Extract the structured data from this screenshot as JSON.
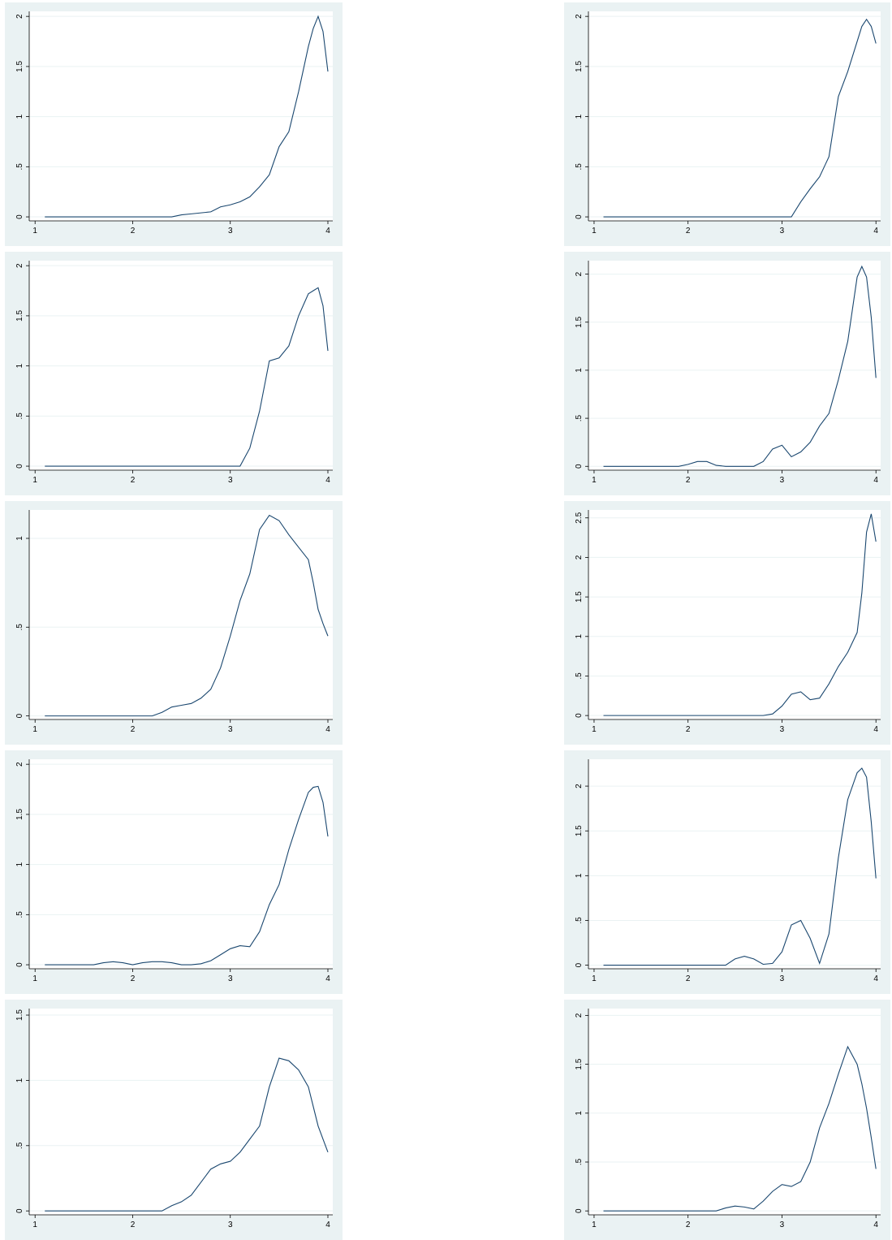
{
  "chart_data": [
    {
      "type": "line",
      "x": [
        1.1,
        1.2,
        1.3,
        1.4,
        1.5,
        1.6,
        1.7,
        1.8,
        1.9,
        2.0,
        2.1,
        2.2,
        2.3,
        2.4,
        2.5,
        2.6,
        2.7,
        2.8,
        2.9,
        3.0,
        3.1,
        3.2,
        3.3,
        3.4,
        3.5,
        3.6,
        3.7,
        3.8,
        3.85,
        3.9,
        3.95,
        4.0
      ],
      "series": [
        {
          "color": "#1a476f",
          "values": [
            0,
            0,
            0,
            0,
            0,
            0,
            0,
            0,
            0,
            0,
            0,
            0,
            0,
            0,
            0.02,
            0.03,
            0.04,
            0.05,
            0.1,
            0.12,
            0.15,
            0.2,
            0.3,
            0.42,
            0.7,
            0.85,
            1.25,
            1.7,
            1.88,
            2.0,
            1.85,
            1.45
          ]
        }
      ],
      "xlim": [
        0.94,
        4.05
      ],
      "xticks": [
        1,
        2,
        3,
        4
      ],
      "ylim": [
        -0.04,
        2.05
      ],
      "yticks": [
        0,
        {
          "value": 0.5,
          "label": ".5"
        },
        1,
        1.5,
        2
      ],
      "grid": true
    },
    {
      "type": "line",
      "x": [
        1.1,
        1.2,
        1.3,
        1.4,
        1.5,
        1.6,
        1.7,
        1.8,
        1.9,
        2.0,
        2.1,
        2.2,
        2.3,
        2.4,
        2.5,
        2.6,
        2.7,
        2.8,
        2.9,
        3.0,
        3.1,
        3.2,
        3.3,
        3.4,
        3.5,
        3.6,
        3.7,
        3.8,
        3.85,
        3.9,
        3.95,
        4.0
      ],
      "series": [
        {
          "color": "#1a476f",
          "values": [
            0,
            0,
            0,
            0,
            0,
            0,
            0,
            0,
            0,
            0,
            0,
            0,
            0,
            0,
            0,
            0,
            0,
            0,
            0,
            0,
            0,
            0.15,
            0.28,
            0.4,
            0.6,
            1.2,
            1.45,
            1.75,
            1.9,
            1.97,
            1.9,
            1.73
          ]
        }
      ],
      "xlim": [
        0.94,
        4.05
      ],
      "xticks": [
        1,
        2,
        3,
        4
      ],
      "ylim": [
        -0.04,
        2.05
      ],
      "yticks": [
        0,
        {
          "value": 0.5,
          "label": ".5"
        },
        1,
        1.5,
        2
      ],
      "grid": true
    },
    {
      "type": "line",
      "x": [
        1.1,
        1.2,
        1.3,
        1.4,
        1.5,
        1.6,
        1.7,
        1.8,
        1.9,
        2.0,
        2.1,
        2.2,
        2.3,
        2.4,
        2.5,
        2.6,
        2.7,
        2.8,
        2.9,
        3.0,
        3.1,
        3.2,
        3.3,
        3.4,
        3.5,
        3.6,
        3.7,
        3.8,
        3.85,
        3.9,
        3.95,
        4.0
      ],
      "series": [
        {
          "color": "#1a476f",
          "values": [
            0,
            0,
            0,
            0,
            0,
            0,
            0,
            0,
            0,
            0,
            0,
            0,
            0,
            0,
            0,
            0,
            0,
            0,
            0,
            0,
            0,
            0.18,
            0.55,
            1.05,
            1.08,
            1.2,
            1.5,
            1.72,
            1.75,
            1.78,
            1.6,
            1.15
          ]
        }
      ],
      "xlim": [
        0.94,
        4.05
      ],
      "xticks": [
        1,
        2,
        3,
        4
      ],
      "ylim": [
        -0.04,
        2.05
      ],
      "yticks": [
        0,
        {
          "value": 0.5,
          "label": ".5"
        },
        1,
        1.5,
        2
      ],
      "grid": true
    },
    {
      "type": "line",
      "x": [
        1.1,
        1.2,
        1.3,
        1.4,
        1.5,
        1.6,
        1.7,
        1.8,
        1.9,
        2.0,
        2.1,
        2.2,
        2.3,
        2.4,
        2.5,
        2.6,
        2.7,
        2.8,
        2.9,
        3.0,
        3.1,
        3.2,
        3.3,
        3.4,
        3.5,
        3.6,
        3.7,
        3.8,
        3.85,
        3.9,
        3.95,
        4.0
      ],
      "series": [
        {
          "color": "#1a476f",
          "values": [
            0,
            0,
            0,
            0,
            0,
            0,
            0,
            0,
            0,
            0.02,
            0.05,
            0.05,
            0.01,
            0,
            0,
            0,
            0,
            0.05,
            0.18,
            0.22,
            0.1,
            0.15,
            0.25,
            0.42,
            0.55,
            0.9,
            1.3,
            1.97,
            2.08,
            1.97,
            1.55,
            0.92
          ]
        }
      ],
      "xlim": [
        0.94,
        4.05
      ],
      "xticks": [
        1,
        2,
        3,
        4
      ],
      "ylim": [
        -0.04,
        2.14
      ],
      "yticks": [
        0,
        {
          "value": 0.5,
          "label": ".5"
        },
        1,
        1.5,
        2
      ],
      "grid": true
    },
    {
      "type": "line",
      "x": [
        1.1,
        1.2,
        1.3,
        1.4,
        1.5,
        1.6,
        1.7,
        1.8,
        1.9,
        2.0,
        2.1,
        2.2,
        2.3,
        2.4,
        2.5,
        2.6,
        2.7,
        2.8,
        2.9,
        3.0,
        3.1,
        3.2,
        3.3,
        3.4,
        3.5,
        3.6,
        3.7,
        3.8,
        3.85,
        3.9,
        3.95,
        4.0
      ],
      "series": [
        {
          "color": "#1a476f",
          "values": [
            0,
            0,
            0,
            0,
            0,
            0,
            0,
            0,
            0,
            0,
            0,
            0,
            0.02,
            0.05,
            0.06,
            0.07,
            0.1,
            0.15,
            0.27,
            0.45,
            0.65,
            0.8,
            1.05,
            1.13,
            1.1,
            1.02,
            0.95,
            0.88,
            0.75,
            0.6,
            0.52,
            0.45
          ]
        }
      ],
      "xlim": [
        0.94,
        4.05
      ],
      "xticks": [
        1,
        2,
        3,
        4
      ],
      "ylim": [
        -0.02,
        1.16
      ],
      "yticks": [
        0,
        {
          "value": 0.5,
          "label": ".5"
        },
        1
      ],
      "grid": true
    },
    {
      "type": "line",
      "x": [
        1.1,
        1.2,
        1.3,
        1.4,
        1.5,
        1.6,
        1.7,
        1.8,
        1.9,
        2.0,
        2.1,
        2.2,
        2.3,
        2.4,
        2.5,
        2.6,
        2.7,
        2.8,
        2.9,
        3.0,
        3.1,
        3.2,
        3.3,
        3.4,
        3.5,
        3.6,
        3.7,
        3.8,
        3.85,
        3.9,
        3.95,
        4.0
      ],
      "series": [
        {
          "color": "#1a476f",
          "values": [
            0,
            0,
            0,
            0,
            0,
            0,
            0,
            0,
            0,
            0,
            0,
            0,
            0,
            0,
            0,
            0,
            0,
            0,
            0.02,
            0.12,
            0.27,
            0.3,
            0.2,
            0.22,
            0.4,
            0.62,
            0.8,
            1.05,
            1.55,
            2.32,
            2.55,
            2.2
          ]
        }
      ],
      "xlim": [
        0.94,
        4.05
      ],
      "xticks": [
        1,
        2,
        3,
        4
      ],
      "ylim": [
        -0.05,
        2.6
      ],
      "yticks": [
        0,
        {
          "value": 0.5,
          "label": ".5"
        },
        1,
        1.5,
        2,
        2.5
      ],
      "grid": true
    },
    {
      "type": "line",
      "x": [
        1.1,
        1.2,
        1.3,
        1.4,
        1.5,
        1.6,
        1.7,
        1.8,
        1.9,
        2.0,
        2.1,
        2.2,
        2.3,
        2.4,
        2.5,
        2.6,
        2.7,
        2.8,
        2.9,
        3.0,
        3.1,
        3.2,
        3.3,
        3.4,
        3.5,
        3.6,
        3.7,
        3.8,
        3.85,
        3.9,
        3.95,
        4.0
      ],
      "series": [
        {
          "color": "#1a476f",
          "values": [
            0,
            0,
            0,
            0,
            0,
            0,
            0.02,
            0.03,
            0.02,
            0,
            0.02,
            0.03,
            0.03,
            0.02,
            0,
            0,
            0.01,
            0.04,
            0.1,
            0.16,
            0.19,
            0.18,
            0.33,
            0.6,
            0.8,
            1.15,
            1.45,
            1.72,
            1.77,
            1.78,
            1.62,
            1.28
          ]
        }
      ],
      "xlim": [
        0.94,
        4.05
      ],
      "xticks": [
        1,
        2,
        3,
        4
      ],
      "ylim": [
        -0.04,
        2.05
      ],
      "yticks": [
        0,
        {
          "value": 0.5,
          "label": ".5"
        },
        1,
        1.5,
        2
      ],
      "grid": true
    },
    {
      "type": "line",
      "x": [
        1.1,
        1.2,
        1.3,
        1.4,
        1.5,
        1.6,
        1.7,
        1.8,
        1.9,
        2.0,
        2.1,
        2.2,
        2.3,
        2.4,
        2.5,
        2.6,
        2.7,
        2.8,
        2.9,
        3.0,
        3.1,
        3.2,
        3.3,
        3.4,
        3.5,
        3.6,
        3.7,
        3.8,
        3.85,
        3.9,
        3.95,
        4.0
      ],
      "series": [
        {
          "color": "#1a476f",
          "values": [
            0,
            0,
            0,
            0,
            0,
            0,
            0,
            0,
            0,
            0,
            0,
            0,
            0,
            0,
            0.07,
            0.1,
            0.07,
            0.01,
            0.02,
            0.15,
            0.45,
            0.5,
            0.3,
            0.02,
            0.35,
            1.2,
            1.85,
            2.15,
            2.2,
            2.1,
            1.6,
            0.97
          ]
        }
      ],
      "xlim": [
        0.94,
        4.05
      ],
      "xticks": [
        1,
        2,
        3,
        4
      ],
      "ylim": [
        -0.04,
        2.3
      ],
      "yticks": [
        0,
        {
          "value": 0.5,
          "label": ".5"
        },
        1,
        1.5,
        2
      ],
      "grid": true
    },
    {
      "type": "line",
      "x": [
        1.1,
        1.2,
        1.3,
        1.4,
        1.5,
        1.6,
        1.7,
        1.8,
        1.9,
        2.0,
        2.1,
        2.2,
        2.3,
        2.4,
        2.5,
        2.6,
        2.7,
        2.8,
        2.9,
        3.0,
        3.1,
        3.2,
        3.3,
        3.4,
        3.5,
        3.6,
        3.7,
        3.8,
        3.85,
        3.9,
        3.95,
        4.0
      ],
      "series": [
        {
          "color": "#1a476f",
          "values": [
            0,
            0,
            0,
            0,
            0,
            0,
            0,
            0,
            0,
            0,
            0,
            0,
            0,
            0.04,
            0.07,
            0.12,
            0.22,
            0.32,
            0.36,
            0.38,
            0.45,
            0.55,
            0.65,
            0.95,
            1.17,
            1.15,
            1.08,
            0.95,
            0.8,
            0.65,
            0.55,
            0.45
          ]
        }
      ],
      "xlim": [
        0.94,
        4.05
      ],
      "xticks": [
        1,
        2,
        3,
        4
      ],
      "ylim": [
        -0.03,
        1.55
      ],
      "yticks": [
        0,
        {
          "value": 0.5,
          "label": ".5"
        },
        1,
        1.5
      ],
      "grid": true
    },
    {
      "type": "line",
      "x": [
        1.1,
        1.2,
        1.3,
        1.4,
        1.5,
        1.6,
        1.7,
        1.8,
        1.9,
        2.0,
        2.1,
        2.2,
        2.3,
        2.4,
        2.5,
        2.6,
        2.7,
        2.8,
        2.9,
        3.0,
        3.1,
        3.2,
        3.3,
        3.4,
        3.5,
        3.6,
        3.7,
        3.8,
        3.85,
        3.9,
        3.95,
        4.0
      ],
      "series": [
        {
          "color": "#1a476f",
          "values": [
            0,
            0,
            0,
            0,
            0,
            0,
            0,
            0,
            0,
            0,
            0,
            0,
            0,
            0.03,
            0.05,
            0.04,
            0.02,
            0.1,
            0.2,
            0.27,
            0.25,
            0.3,
            0.5,
            0.85,
            1.1,
            1.4,
            1.68,
            1.5,
            1.3,
            1.05,
            0.75,
            0.43
          ]
        }
      ],
      "xlim": [
        0.94,
        4.05
      ],
      "xticks": [
        1,
        2,
        3,
        4
      ],
      "ylim": [
        -0.04,
        2.07
      ],
      "yticks": [
        0,
        {
          "value": 0.5,
          "label": ".5"
        },
        1,
        1.5,
        2
      ],
      "grid": true
    }
  ]
}
